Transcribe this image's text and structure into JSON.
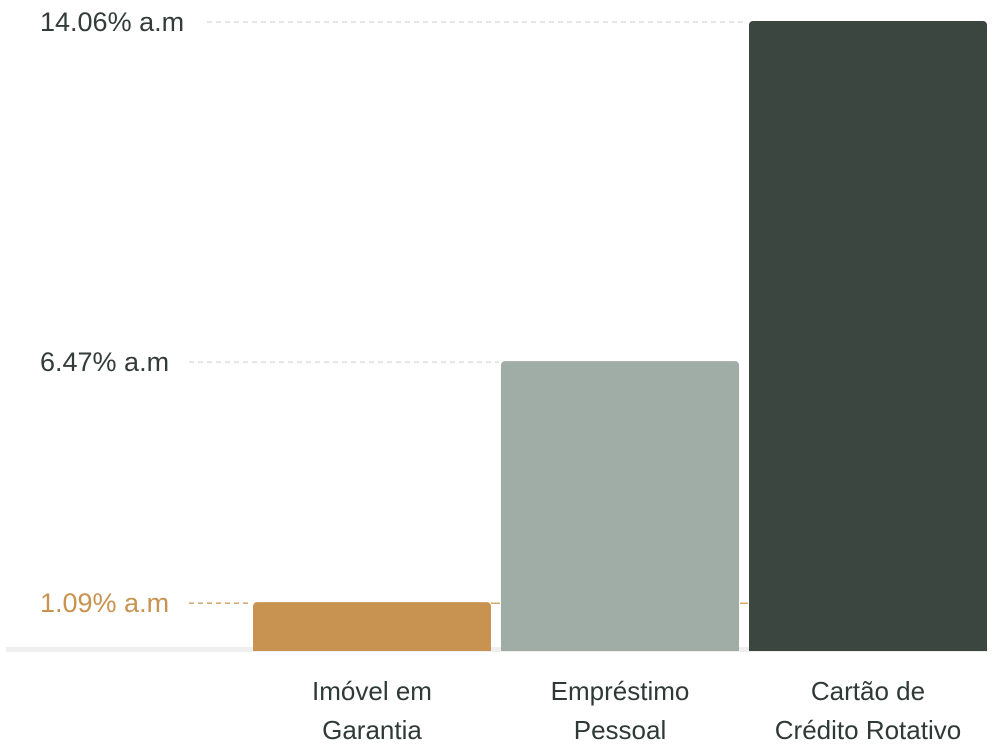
{
  "chart_data": {
    "type": "bar",
    "categories": [
      [
        "Imóvel em",
        "Garantia"
      ],
      [
        "Empréstimo",
        "Pessoal"
      ],
      [
        "Cartão de",
        "Crédito Rotativo"
      ]
    ],
    "values": [
      1.09,
      6.47,
      14.06
    ],
    "value_labels": [
      "1.09% a.m",
      "6.47% a.m",
      "14.06% a.m"
    ],
    "colors": [
      "#c89350",
      "#a0ada6",
      "#3c4641"
    ],
    "label_colors": [
      "#c89350",
      "#333c38",
      "#333c38"
    ],
    "baseline_color": "#efefef",
    "ylim": [
      0,
      14.06
    ],
    "grid": false,
    "legend": "none"
  }
}
